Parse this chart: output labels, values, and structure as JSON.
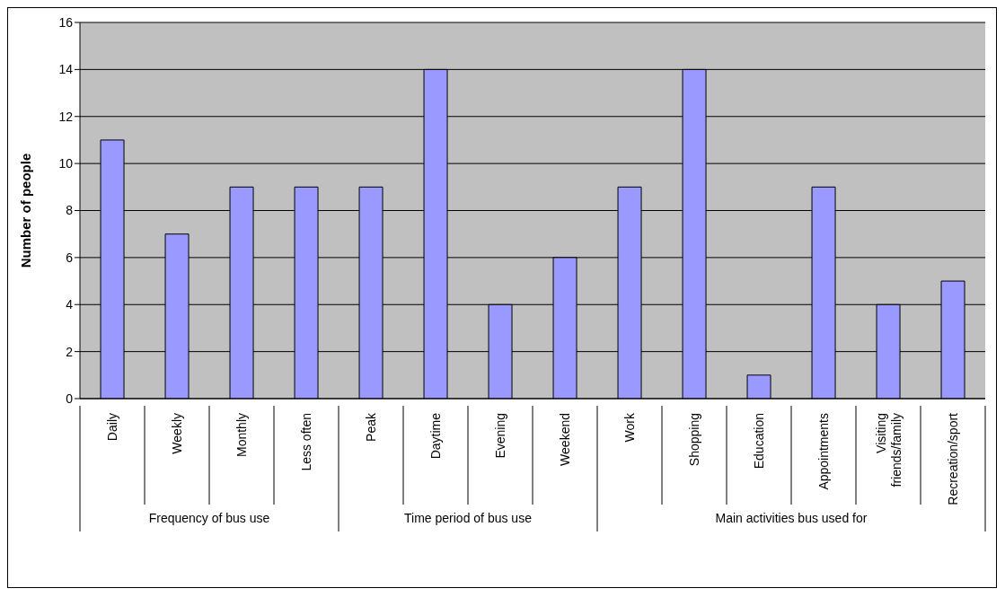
{
  "chart_data": {
    "type": "bar",
    "ylabel": "Number of people",
    "categories": [
      "Daily",
      "Weekly",
      "Monthly",
      "Less often",
      "Peak",
      "Daytime",
      "Evening",
      "Weekend",
      "Work",
      "Shopping",
      "Education",
      "Appointments",
      "Visiting friends/family",
      "Recreation/sport"
    ],
    "values": [
      11,
      7,
      9,
      9,
      9,
      14,
      4,
      6,
      9,
      14,
      1,
      9,
      4,
      5
    ],
    "color": "#9999ff",
    "ylim": [
      0,
      16
    ],
    "yticks": [
      0,
      2,
      4,
      6,
      8,
      10,
      12,
      14,
      16
    ],
    "grid": "y",
    "legend": false,
    "annotations": [
      "Frequency of bus use",
      "Time period of bus use",
      "Main activities bus used for"
    ]
  }
}
